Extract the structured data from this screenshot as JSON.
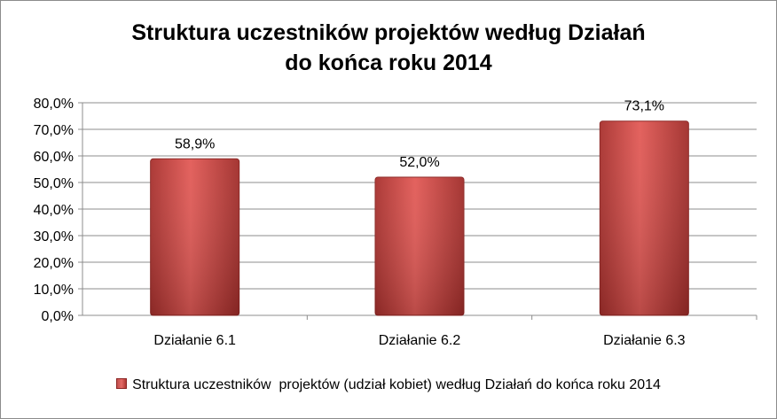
{
  "chart_data": {
    "type": "bar",
    "title_line1": "Struktura uczestników projektów według Działań",
    "title_line2": "do końca roku 2014",
    "categories": [
      "Działanie 6.1",
      "Działanie 6.2",
      "Działanie 6.3"
    ],
    "series": [
      {
        "name": "Struktura uczestników  projektów (udział kobiet) według Działań do końca roku 2014",
        "values": [
          58.9,
          52.0,
          73.1
        ],
        "labels": [
          "58,9%",
          "52,0%",
          "73,1%"
        ],
        "color": "#c0504d"
      }
    ],
    "yticks": [
      "0,0%",
      "10,0%",
      "20,0%",
      "30,0%",
      "40,0%",
      "50,0%",
      "60,0%",
      "70,0%",
      "80,0%"
    ],
    "ylim": [
      0,
      80
    ],
    "grid": true,
    "legend_position": "bottom"
  }
}
